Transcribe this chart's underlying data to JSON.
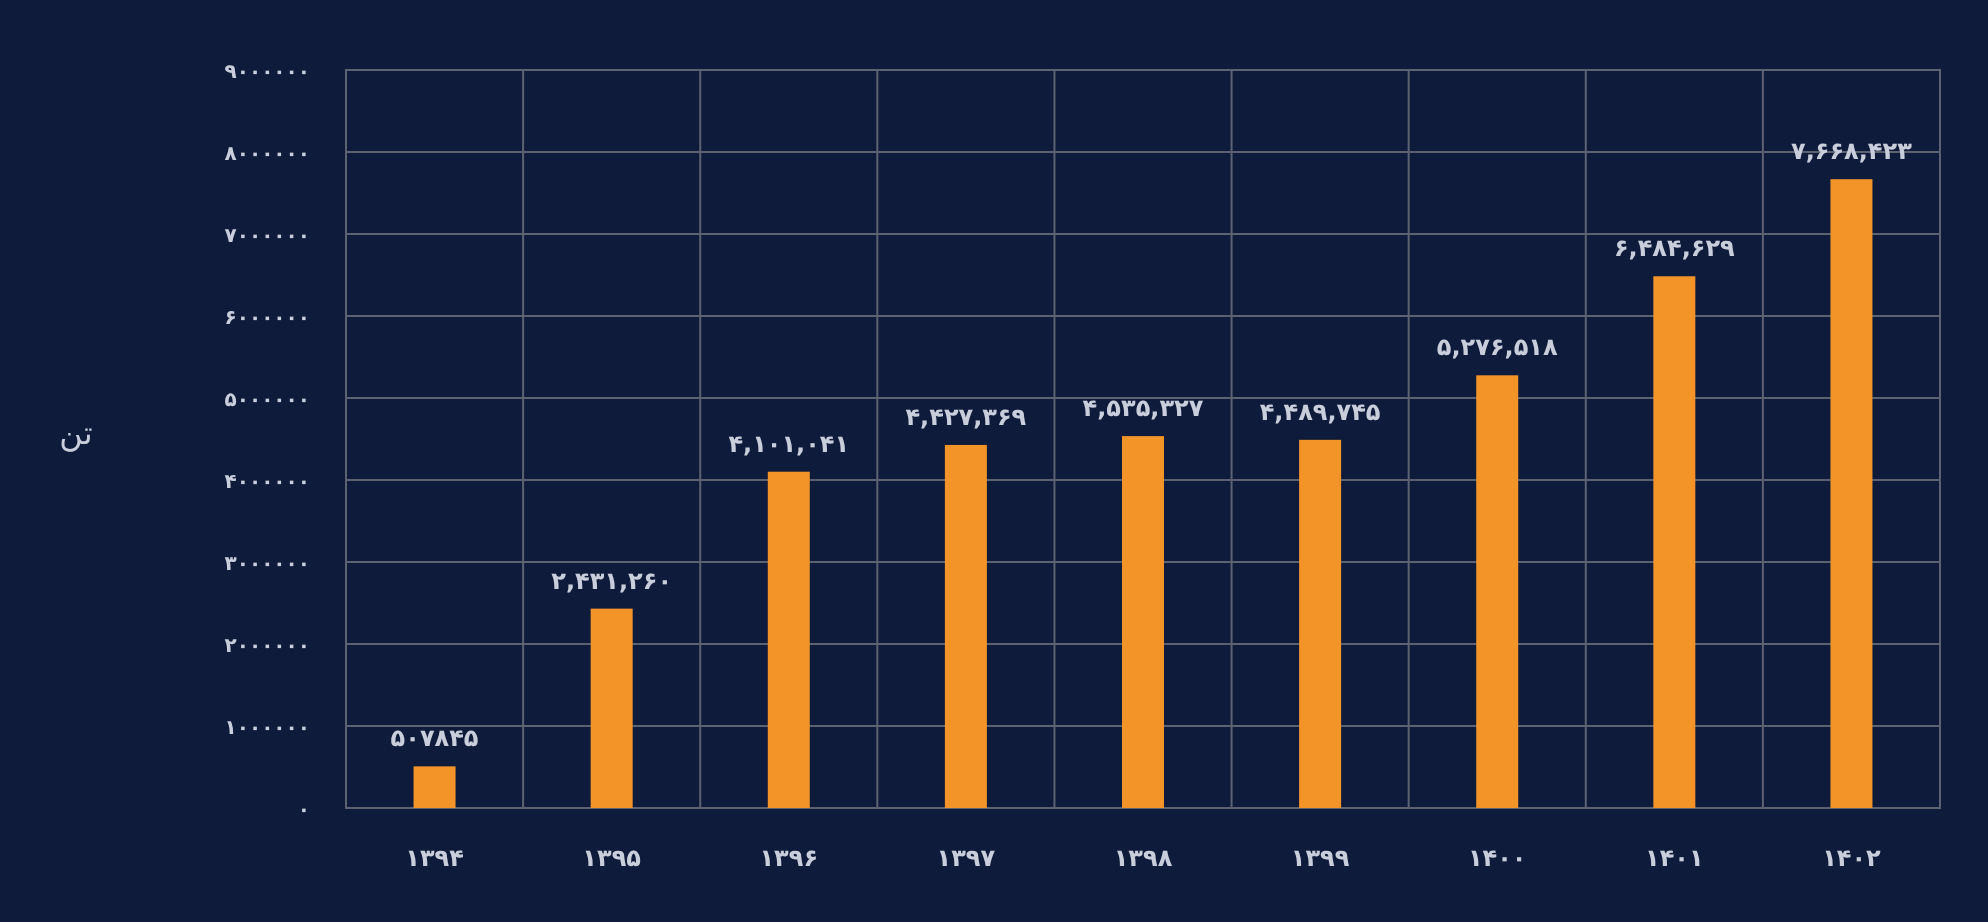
{
  "chart_data": {
    "type": "bar",
    "ylabel": "تن",
    "categories": [
      "۱۳۹۴",
      "۱۳۹۵",
      "۱۳۹۶",
      "۱۳۹۷",
      "۱۳۹۸",
      "۱۳۹۹",
      "۱۴۰۰",
      "۱۴۰۱",
      "۱۴۰۲"
    ],
    "values": [
      507845,
      2431260,
      4101041,
      4427369,
      4535327,
      4489745,
      5276518,
      6484629,
      7668423
    ],
    "value_labels": [
      "۵۰۷۸۴۵",
      "۲,۴۳۱,۲۶۰",
      "۴,۱۰۱,۰۴۱",
      "۴,۴۲۷,۳۶۹",
      "۴,۵۳۵,۳۲۷",
      "۴,۴۸۹,۷۴۵",
      "۵,۲۷۶,۵۱۸",
      "۶,۴۸۴,۶۲۹",
      "۷,۶۶۸,۴۲۳"
    ],
    "color": "#f39428",
    "ylim": [
      0,
      9000000
    ],
    "yticks": [
      {
        "value": 0,
        "label": "۰"
      },
      {
        "value": 1000000,
        "label": "۱۰۰۰۰۰۰"
      },
      {
        "value": 2000000,
        "label": "۲۰۰۰۰۰۰"
      },
      {
        "value": 3000000,
        "label": "۳۰۰۰۰۰۰"
      },
      {
        "value": 4000000,
        "label": "۴۰۰۰۰۰۰"
      },
      {
        "value": 5000000,
        "label": "۵۰۰۰۰۰۰"
      },
      {
        "value": 6000000,
        "label": "۶۰۰۰۰۰۰"
      },
      {
        "value": 7000000,
        "label": "۷۰۰۰۰۰۰"
      },
      {
        "value": 8000000,
        "label": "۸۰۰۰۰۰۰"
      },
      {
        "value": 9000000,
        "label": "۹۰۰۰۰۰۰"
      }
    ],
    "grid": true
  }
}
